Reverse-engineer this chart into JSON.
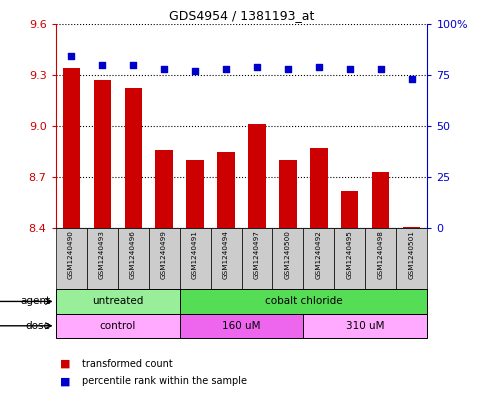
{
  "title": "GDS4954 / 1381193_at",
  "samples": [
    "GSM1240490",
    "GSM1240493",
    "GSM1240496",
    "GSM1240499",
    "GSM1240491",
    "GSM1240494",
    "GSM1240497",
    "GSM1240500",
    "GSM1240492",
    "GSM1240495",
    "GSM1240498",
    "GSM1240501"
  ],
  "bar_values": [
    9.34,
    9.27,
    9.22,
    8.86,
    8.8,
    8.85,
    9.01,
    8.8,
    8.87,
    8.62,
    8.73,
    8.41
  ],
  "dot_values": [
    84,
    80,
    80,
    78,
    77,
    78,
    79,
    78,
    79,
    78,
    78,
    73
  ],
  "ylim_left": [
    8.4,
    9.6
  ],
  "ylim_right": [
    0,
    100
  ],
  "yticks_left": [
    8.4,
    8.7,
    9.0,
    9.3,
    9.6
  ],
  "yticks_right": [
    0,
    25,
    50,
    75,
    100
  ],
  "bar_color": "#cc0000",
  "dot_color": "#0000cc",
  "bar_width": 0.55,
  "agent_groups": [
    {
      "label": "untreated",
      "start": 0,
      "end": 4,
      "color": "#99ee99"
    },
    {
      "label": "cobalt chloride",
      "start": 4,
      "end": 12,
      "color": "#55dd55"
    }
  ],
  "dose_groups": [
    {
      "label": "control",
      "start": 0,
      "end": 4,
      "color": "#ffaaff"
    },
    {
      "label": "160 uM",
      "start": 4,
      "end": 8,
      "color": "#ee66ee"
    },
    {
      "label": "310 uM",
      "start": 8,
      "end": 12,
      "color": "#ffaaff"
    }
  ],
  "legend_items": [
    {
      "label": "transformed count",
      "color": "#cc0000"
    },
    {
      "label": "percentile rank within the sample",
      "color": "#0000cc"
    }
  ],
  "agent_label": "agent",
  "dose_label": "dose",
  "left_axis_color": "#cc0000",
  "right_axis_color": "#0000cc",
  "background_color": "#ffffff",
  "sample_box_color": "#cccccc"
}
